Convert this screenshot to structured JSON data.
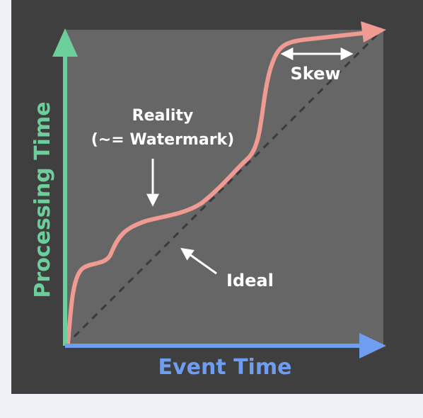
{
  "diagram": {
    "y_axis_label": "Processing Time",
    "x_axis_label": "Event Time",
    "reality_label_line1": "Reality",
    "reality_label_line2": "(~= Watermark)",
    "ideal_label": "Ideal",
    "skew_label": "Skew"
  },
  "colors": {
    "frame_background": "#3f3f3f",
    "plot_background": "#666666",
    "y_axis": "#6ccf9b",
    "x_axis": "#6f9df0",
    "reality_curve": "#ef9a93",
    "ideal_line": "#3a3a3a",
    "annotation_arrows": "#ffffff"
  }
}
